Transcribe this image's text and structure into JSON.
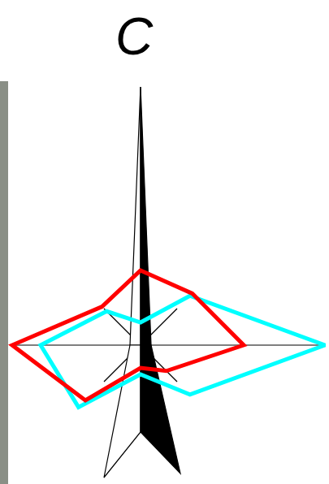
{
  "chart_data": {
    "type": "radar",
    "title": "C",
    "categories": [
      null,
      null,
      null,
      null,
      null,
      null,
      null,
      null
    ],
    "series": [
      {
        "color": "#ff0000",
        "values": [
          92,
          90,
          127,
          45,
          28,
          96,
          158,
          67
        ]
      },
      {
        "color": "#00ffff",
        "values": [
          28,
          86,
          227,
          86,
          36,
          108,
          123,
          59
        ]
      }
    ],
    "ylim": [
      0,
      228
    ],
    "tick_labels": false,
    "grid": false
  }
}
